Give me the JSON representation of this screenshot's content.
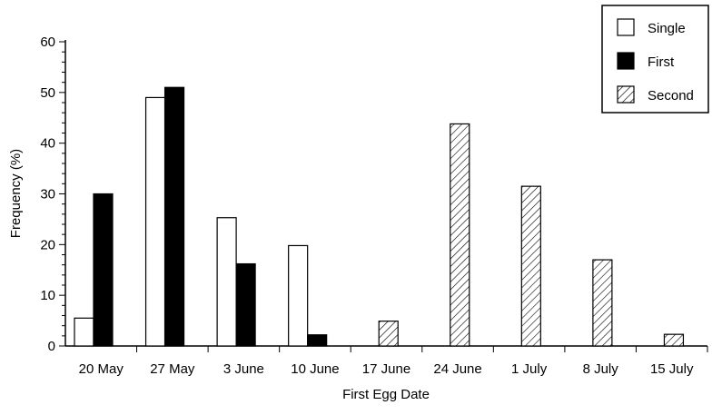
{
  "chart_data": {
    "type": "bar",
    "categories": [
      "20 May",
      "27 May",
      "3 June",
      "10 June",
      "17 June",
      "24 June",
      "1 July",
      "8 July",
      "15 July"
    ],
    "series": [
      {
        "name": "Single",
        "style": "open",
        "color": "#ffffff",
        "values": [
          5.5,
          49,
          25.3,
          19.8,
          0,
          0,
          0,
          0,
          0
        ]
      },
      {
        "name": "First",
        "style": "solid",
        "color": "#000000",
        "values": [
          30,
          51,
          16.2,
          2.2,
          0,
          0,
          0,
          0,
          0
        ]
      },
      {
        "name": "Second",
        "style": "hatched",
        "color": "#ffffff",
        "values": [
          0,
          0,
          0,
          0,
          4.9,
          43.8,
          31.5,
          17,
          2.3
        ]
      }
    ],
    "xlabel": "First Egg Date",
    "ylabel": "Frequency (%)",
    "ylim": [
      0,
      60
    ],
    "yticks": [
      0,
      10,
      20,
      30,
      40,
      50,
      60
    ],
    "grid": false,
    "legend_position": "top-right"
  }
}
